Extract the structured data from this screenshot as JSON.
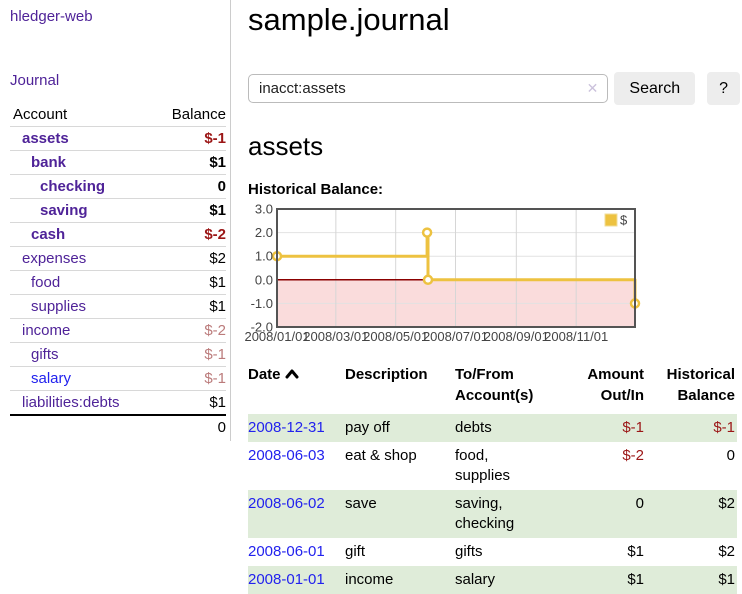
{
  "colors": {
    "link_purple": "#4f2398",
    "link_blue": "#2222ee",
    "negative_red": "#9b1616",
    "muted_negative_red": "#bb7b7b",
    "row_highlight_green": "#dfecd9",
    "chart_gold": "#edc240",
    "negative_region_pink": "#fadcdc",
    "zero_line_red": "#8b0000"
  },
  "sidebar": {
    "brand": "hledger-web",
    "nav_journal": "Journal",
    "table": {
      "account_header": "Account",
      "balance_header": "Balance",
      "rows": [
        {
          "account": "assets",
          "depth": 0,
          "emphasis": true,
          "link_color": "purple",
          "balance": "$-1",
          "balance_style": "neg"
        },
        {
          "account": "bank",
          "depth": 1,
          "emphasis": true,
          "link_color": "purple",
          "balance": "$1",
          "balance_style": "pos"
        },
        {
          "account": "checking",
          "depth": 2,
          "emphasis": true,
          "link_color": "purple",
          "balance": "0",
          "balance_style": "pos"
        },
        {
          "account": "saving",
          "depth": 2,
          "emphasis": true,
          "link_color": "purple",
          "balance": "$1",
          "balance_style": "pos"
        },
        {
          "account": "cash",
          "depth": 1,
          "emphasis": true,
          "link_color": "purple",
          "balance": "$-2",
          "balance_style": "neg"
        },
        {
          "account": "expenses",
          "depth": 0,
          "emphasis": false,
          "link_color": "purple",
          "balance": "$2",
          "balance_style": "pos"
        },
        {
          "account": "food",
          "depth": 1,
          "emphasis": false,
          "link_color": "purple",
          "balance": "$1",
          "balance_style": "pos"
        },
        {
          "account": "supplies",
          "depth": 1,
          "emphasis": false,
          "link_color": "purple",
          "balance": "$1",
          "balance_style": "pos"
        },
        {
          "account": "income",
          "depth": 0,
          "emphasis": false,
          "link_color": "purple",
          "balance": "$-2",
          "balance_style": "muted"
        },
        {
          "account": "gifts",
          "depth": 1,
          "emphasis": false,
          "link_color": "purple",
          "balance": "$-1",
          "balance_style": "muted"
        },
        {
          "account": "salary",
          "depth": 1,
          "emphasis": false,
          "link_color": "blue",
          "balance": "$-1",
          "balance_style": "muted"
        },
        {
          "account": "liabilities:debts",
          "depth": 0,
          "emphasis": false,
          "link_color": "purple",
          "balance": "$1",
          "balance_style": "pos"
        }
      ],
      "total": "0"
    }
  },
  "main": {
    "title": "sample.journal",
    "search": {
      "value": "inacct:assets",
      "clear_icon": "✕",
      "search_button": "Search",
      "help_button": "?"
    },
    "account_heading": "assets",
    "chart_label": "Historical Balance:",
    "register": {
      "headers": {
        "date": "Date",
        "description": "Description",
        "accounts": "To/From Account(s)",
        "amount": "Amount Out/In",
        "balance": "Historical Balance"
      },
      "rows": [
        {
          "date": "2008-12-31",
          "description": "pay off",
          "accounts": "debts",
          "amount": "$-1",
          "balance": "$-1"
        },
        {
          "date": "2008-06-03",
          "description": "eat & shop",
          "accounts": "food, supplies",
          "amount": "$-2",
          "balance": "0"
        },
        {
          "date": "2008-06-02",
          "description": "save",
          "accounts": "saving, checking",
          "amount": "0",
          "balance": "$2"
        },
        {
          "date": "2008-06-01",
          "description": "gift",
          "accounts": "gifts",
          "amount": "$1",
          "balance": "$2"
        },
        {
          "date": "2008-01-01",
          "description": "income",
          "accounts": "salary",
          "amount": "$1",
          "balance": "$1"
        }
      ]
    }
  },
  "chart_data": {
    "type": "line",
    "step": true,
    "title": "Historical Balance",
    "series": [
      {
        "name": "$",
        "color": "#edc240",
        "points": [
          [
            "2008-01-01",
            1
          ],
          [
            "2008-06-02",
            2
          ],
          [
            "2008-06-03",
            0
          ],
          [
            "2008-12-31",
            -1
          ]
        ]
      }
    ],
    "x_range": [
      "2008-01-01",
      "2008-12-31"
    ],
    "ylim": [
      -2,
      3
    ],
    "y_ticks": [
      3,
      2,
      1,
      0,
      -1,
      -2
    ],
    "x_ticks": [
      "2008/01/01",
      "2008/03/01",
      "2008/05/01",
      "2008/07/01",
      "2008/09/01",
      "2008/11/01"
    ],
    "grid": true,
    "legend": {
      "label": "$",
      "position": "top-right"
    },
    "negative_region_shaded": true,
    "negative_fill": "#fadcdc",
    "zero_line_color": "#8b0000"
  }
}
